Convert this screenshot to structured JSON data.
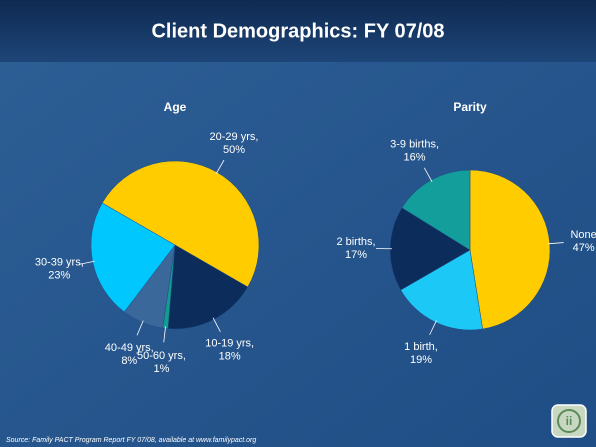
{
  "title": "Client Demographics:  FY 07/08",
  "source": "Source: Family PACT Program Report FY 07/08, available at www.familypact.org",
  "chart_data": [
    {
      "type": "pie",
      "title": "Age",
      "categories": [
        "20-29 yrs,",
        "10-19 yrs,",
        "50-60 yrs,",
        "40-49 yrs,",
        "30-39 yrs,"
      ],
      "values": [
        50,
        18,
        1,
        8,
        23
      ],
      "value_labels": [
        "50%",
        "18%",
        "1%",
        "8%",
        "23%"
      ],
      "colors": [
        "#ffcc00",
        "#0c2c5c",
        "#129e8e",
        "#3a689a",
        "#00c8ff"
      ]
    },
    {
      "type": "pie",
      "title": "Parity",
      "categories": [
        "None",
        "1 birth,",
        "2 births,",
        "3-9 births,"
      ],
      "values": [
        47,
        19,
        17,
        16
      ],
      "value_labels": [
        "47%",
        "19%",
        "17%",
        "16%"
      ],
      "colors": [
        "#ffcc00",
        "#1cc8f5",
        "#0c2c5c",
        "#139e9b"
      ]
    }
  ]
}
